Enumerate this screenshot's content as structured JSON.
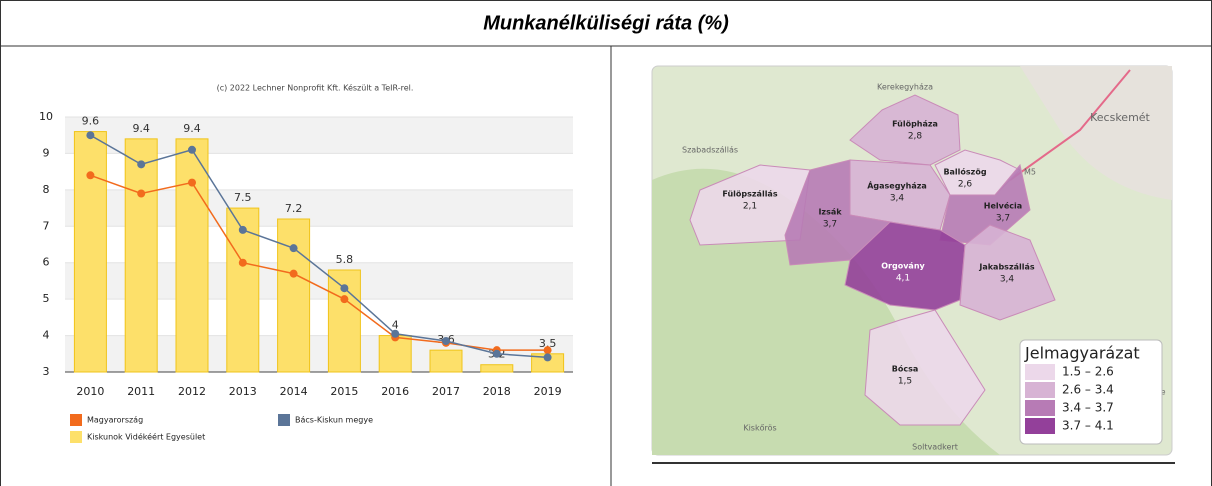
{
  "title": "Munkanélküliségi ráta (%)",
  "chart_data": {
    "type": "bar",
    "subtitle": "(c) 2022 Lechner Nonprofit Kft. Készült a TeIR-rel.",
    "categories": [
      "2010",
      "2011",
      "2012",
      "2013",
      "2014",
      "2015",
      "2016",
      "2017",
      "2018",
      "2019"
    ],
    "series": [
      {
        "name": "Magyarország",
        "type": "line",
        "color": "#f26b1d",
        "values": [
          8.4,
          7.9,
          8.2,
          6.0,
          5.7,
          5.0,
          3.95,
          3.8,
          3.6,
          3.6
        ]
      },
      {
        "name": "Bács-Kiskun megye",
        "type": "line",
        "color": "#5b7598",
        "values": [
          9.5,
          8.7,
          9.1,
          6.9,
          6.4,
          5.3,
          4.05,
          3.85,
          3.5,
          3.4
        ]
      },
      {
        "name": "Kiskunok Vidékéért Egyesület",
        "type": "bar",
        "color": "#fde06a",
        "values": [
          9.6,
          9.4,
          9.4,
          7.5,
          7.2,
          5.8,
          4,
          3.6,
          3.2,
          3.5
        ]
      }
    ],
    "ylim": [
      3,
      10
    ],
    "yticks": [
      3,
      4,
      5,
      6,
      7,
      8,
      9,
      10
    ],
    "grid": true
  },
  "map": {
    "places": [
      "Kerekegyháza",
      "Kecskemét",
      "Szabadszállás",
      "M5",
      "Kiskunféle",
      "Kiskőrös",
      "Soltvadkert"
    ],
    "regions": [
      {
        "name": "Fülöpháza",
        "value": "2,8",
        "color": "#d7b3d4"
      },
      {
        "name": "Ballószög",
        "value": "2,6",
        "color": "#ecd8ea"
      },
      {
        "name": "Fülöpszállás",
        "value": "2,1",
        "color": "#ecd8ea"
      },
      {
        "name": "Ágasegyháza",
        "value": "3,4",
        "color": "#d7b3d4"
      },
      {
        "name": "Izsák",
        "value": "3,7",
        "color": "#b77bb5"
      },
      {
        "name": "Helvécia",
        "value": "3,7",
        "color": "#b77bb5"
      },
      {
        "name": "Orgovány",
        "value": "4,1",
        "color": "#93409a"
      },
      {
        "name": "Jakabszállás",
        "value": "3,4",
        "color": "#d7b3d4"
      },
      {
        "name": "Bócsa",
        "value": "1,5",
        "color": "#ecd8ea"
      }
    ],
    "legend": {
      "title": "Jelmagyarázat",
      "items": [
        {
          "label": "1.5 – 2.6",
          "color": "#ecd8ea"
        },
        {
          "label": "2.6 – 3.4",
          "color": "#d7b3d4"
        },
        {
          "label": "3.4 – 3.7",
          "color": "#b77bb5"
        },
        {
          "label": "3.7 – 4.1",
          "color": "#93409a"
        }
      ]
    }
  }
}
